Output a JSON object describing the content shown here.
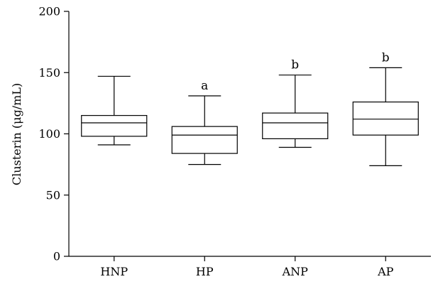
{
  "chart_data": {
    "type": "box",
    "title": "",
    "xlabel": "",
    "ylabel": "Clusterin (μg/mL)",
    "ylim": [
      0,
      200
    ],
    "y_ticks": [
      0,
      50,
      100,
      150,
      200
    ],
    "categories": [
      "HNP",
      "HP",
      "ANP",
      "AP"
    ],
    "boxes": [
      {
        "name": "HNP",
        "min": 91,
        "q1": 98,
        "median": 109,
        "q3": 115,
        "max": 147,
        "annotation": ""
      },
      {
        "name": "HP",
        "min": 75,
        "q1": 84,
        "median": 99,
        "q3": 106,
        "max": 131,
        "annotation": "a"
      },
      {
        "name": "ANP",
        "min": 89,
        "q1": 96,
        "median": 109,
        "q3": 117,
        "max": 148,
        "annotation": "b"
      },
      {
        "name": "AP",
        "min": 74,
        "q1": 99,
        "median": 112,
        "q3": 126,
        "max": 154,
        "annotation": "b"
      }
    ],
    "grid": false,
    "legend": "none"
  }
}
